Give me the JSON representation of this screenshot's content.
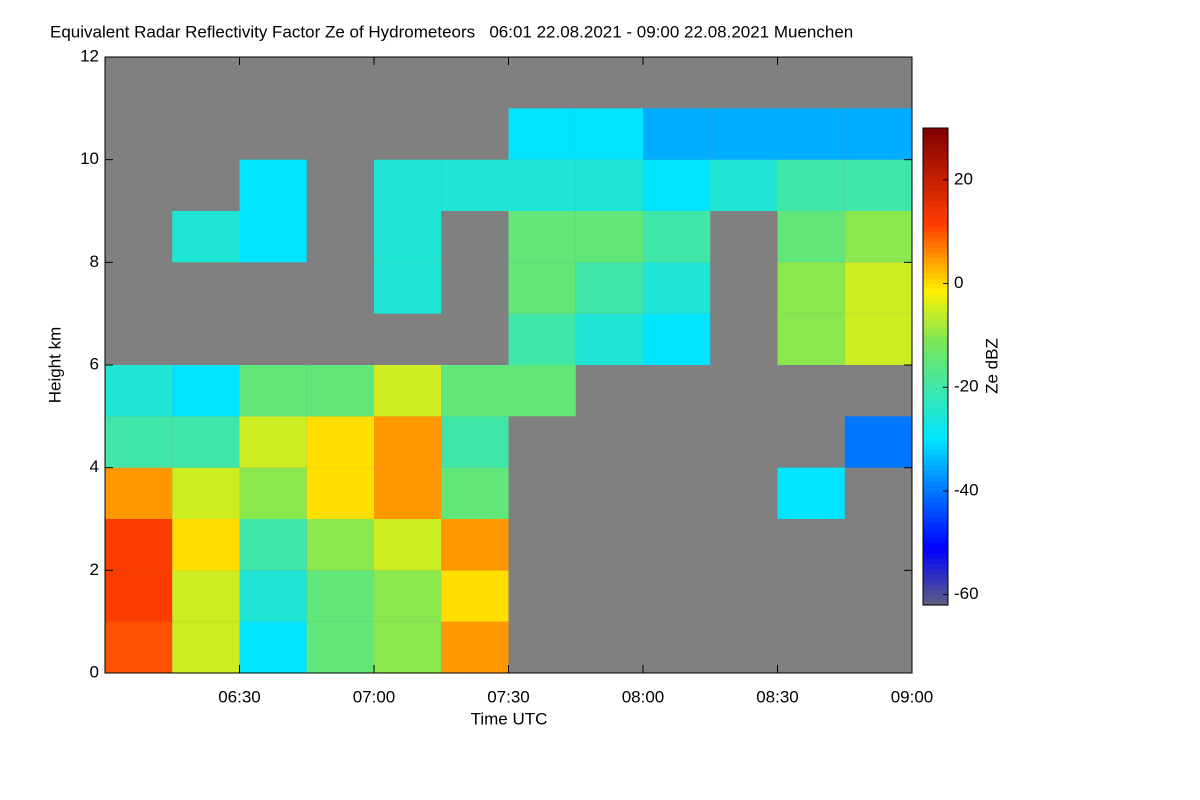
{
  "chart_data": {
    "type": "heatmap",
    "title": "Equivalent Radar Reflectivity Factor Ze of Hydrometeors   06:01 22.08.2021 - 09:00 22.08.2021 Muenchen",
    "x_label": "Time UTC",
    "y_label": "Height km",
    "colorbar_label": "Ze dBZ",
    "colormap": "jet",
    "xlim": [
      6.0,
      9.0
    ],
    "xticks": [
      {
        "value": 6.5,
        "label": "06:30"
      },
      {
        "value": 7.0,
        "label": "07:00"
      },
      {
        "value": 7.5,
        "label": "07:30"
      },
      {
        "value": 8.0,
        "label": "08:00"
      },
      {
        "value": 8.5,
        "label": "08:30"
      },
      {
        "value": 9.0,
        "label": "09:00"
      }
    ],
    "ylim": [
      0,
      12
    ],
    "yticks": [
      0,
      2,
      4,
      6,
      8,
      10,
      12
    ],
    "zlim": [
      -62,
      30
    ],
    "zticks": [
      -60,
      -40,
      -20,
      0,
      20
    ],
    "xbins": [
      6.0,
      6.25,
      6.5,
      6.75,
      7.0,
      7.25,
      7.5,
      7.75,
      8.0,
      8.25,
      8.5,
      8.75,
      9.0
    ],
    "ybins": [
      0,
      1,
      2,
      3,
      4,
      5,
      6,
      7,
      8,
      9,
      10,
      11,
      12
    ],
    "z": [
      [
        10,
        -5,
        -30,
        -15,
        -10,
        5,
        null,
        null,
        null,
        null,
        null,
        null
      ],
      [
        12,
        -5,
        -25,
        -15,
        -10,
        0,
        null,
        null,
        null,
        null,
        null,
        null
      ],
      [
        12,
        0,
        -20,
        -10,
        -5,
        5,
        null,
        null,
        null,
        null,
        null,
        null
      ],
      [
        5,
        -5,
        -10,
        0,
        5,
        -15,
        null,
        null,
        null,
        null,
        -30,
        null
      ],
      [
        -20,
        -20,
        -5,
        0,
        5,
        -20,
        null,
        null,
        null,
        null,
        null,
        -40
      ],
      [
        -25,
        -30,
        -15,
        -15,
        -5,
        -15,
        -15,
        null,
        null,
        null,
        null,
        null
      ],
      [
        null,
        null,
        null,
        null,
        null,
        null,
        -20,
        -25,
        -30,
        null,
        -10,
        -5
      ],
      [
        null,
        null,
        null,
        null,
        -25,
        null,
        -15,
        -20,
        -25,
        null,
        -10,
        -5
      ],
      [
        null,
        -25,
        -30,
        null,
        -25,
        null,
        -15,
        -15,
        -20,
        null,
        -15,
        -10
      ],
      [
        null,
        null,
        -30,
        null,
        -25,
        -25,
        -25,
        -25,
        -30,
        -25,
        -20,
        -20
      ],
      [
        null,
        null,
        null,
        null,
        null,
        null,
        -30,
        -30,
        -35,
        -35,
        -35,
        -35
      ],
      [
        null,
        null,
        null,
        null,
        null,
        null,
        null,
        null,
        null,
        null,
        null,
        null
      ]
    ]
  }
}
